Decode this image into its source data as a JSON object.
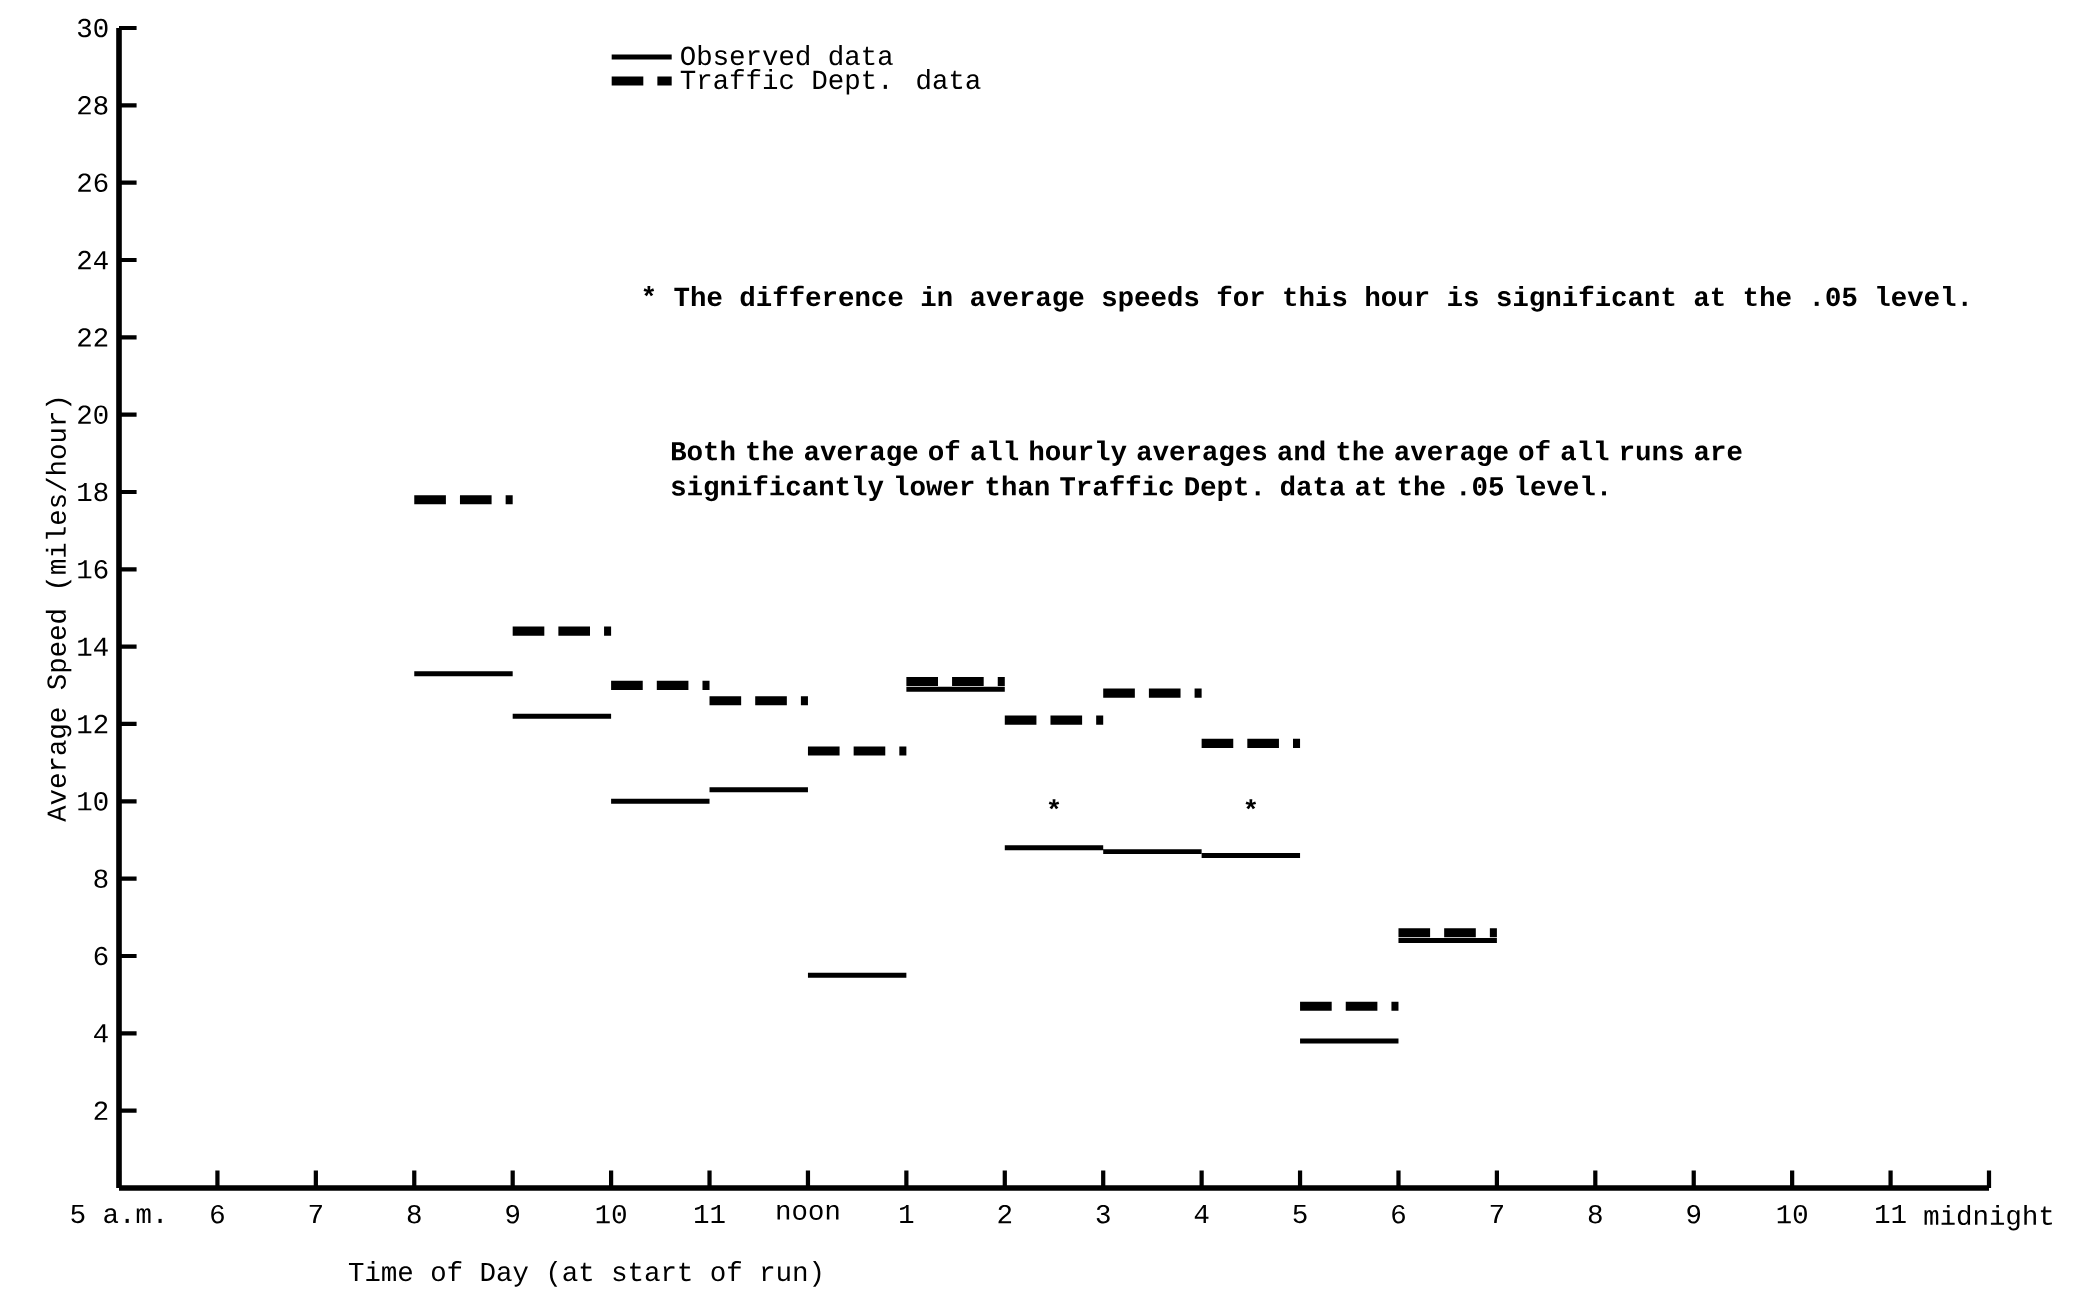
{
  "chart_data": {
    "type": "step",
    "xlabel": "Time of Day (at start of run)",
    "ylabel": "Average Speed (miles/hour)",
    "ylim": [
      0,
      30
    ],
    "yticks": [
      2,
      4,
      6,
      8,
      10,
      12,
      14,
      16,
      18,
      20,
      22,
      24,
      26,
      28,
      30
    ],
    "categories": [
      "5 a.m.",
      "6",
      "7",
      "8",
      "9",
      "10",
      "11",
      "noon",
      "1",
      "2",
      "3",
      "4",
      "5",
      "6",
      "7",
      "8",
      "9",
      "10",
      "11",
      "midnight"
    ],
    "series": [
      {
        "name": "Observed data",
        "color": "#000000",
        "line_style": "solid",
        "values": [
          null,
          null,
          null,
          13.3,
          12.2,
          10.0,
          10.3,
          5.5,
          12.9,
          8.8,
          8.7,
          8.6,
          3.8,
          6.4,
          6.4,
          null,
          null,
          null,
          null,
          null
        ]
      },
      {
        "name": "Traffic Dept. data",
        "color": "#000000",
        "line_style": "dashed",
        "values": [
          null,
          null,
          null,
          17.8,
          14.4,
          13.0,
          12.6,
          11.3,
          13.1,
          12.1,
          12.8,
          11.5,
          4.7,
          6.6,
          6.6,
          null,
          null,
          null,
          null,
          null
        ]
      }
    ],
    "legend": "top",
    "grid": false,
    "annotations": [
      "* The difference in average speeds for this hour is significant at the .05 level.",
      "Both the average of all hourly averages and the average of all runs are significantly lower than Traffic Dept. data at the .05 level.",
      "*",
      "*"
    ]
  }
}
